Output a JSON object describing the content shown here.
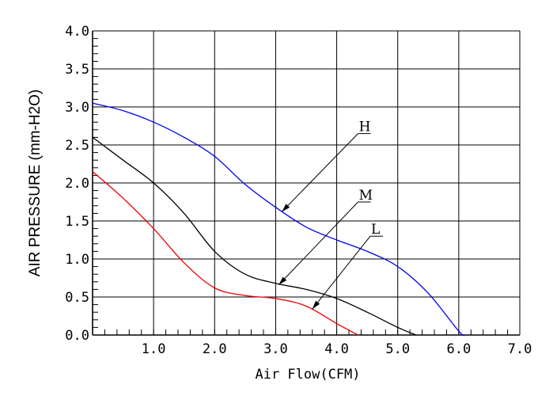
{
  "chart_data": {
    "type": "line",
    "title": "",
    "xlabel": "Air Flow(CFM)",
    "ylabel": "AIR PRESSURE (mm-H2O)",
    "xlim": [
      0,
      7
    ],
    "ylim": [
      0,
      4
    ],
    "grid": true,
    "x_ticks": [
      "1.0",
      "2.0",
      "3.0",
      "4.0",
      "5.0",
      "6.0",
      "7.0"
    ],
    "y_ticks": [
      "0.0",
      "0.5",
      "1.0",
      "1.5",
      "2.0",
      "2.5",
      "3.0",
      "3.5",
      "4.0"
    ],
    "series": [
      {
        "name": "H",
        "color": "#0000ee",
        "points": [
          [
            0,
            3.05
          ],
          [
            0.5,
            2.95
          ],
          [
            1.0,
            2.8
          ],
          [
            1.5,
            2.6
          ],
          [
            2.0,
            2.35
          ],
          [
            2.5,
            1.98
          ],
          [
            3.0,
            1.68
          ],
          [
            3.5,
            1.42
          ],
          [
            4.0,
            1.25
          ],
          [
            4.5,
            1.1
          ],
          [
            5.0,
            0.9
          ],
          [
            5.5,
            0.55
          ],
          [
            6.0,
            0.05
          ],
          [
            6.1,
            0.0
          ]
        ]
      },
      {
        "name": "M",
        "color": "#000000",
        "points": [
          [
            0,
            2.6
          ],
          [
            0.5,
            2.3
          ],
          [
            1.0,
            2.0
          ],
          [
            1.5,
            1.6
          ],
          [
            2.0,
            1.1
          ],
          [
            2.5,
            0.8
          ],
          [
            3.0,
            0.68
          ],
          [
            3.5,
            0.6
          ],
          [
            4.0,
            0.48
          ],
          [
            4.5,
            0.3
          ],
          [
            5.0,
            0.1
          ],
          [
            5.3,
            0.0
          ]
        ]
      },
      {
        "name": "L",
        "color": "#ee0000",
        "points": [
          [
            0,
            2.15
          ],
          [
            0.5,
            1.8
          ],
          [
            1.0,
            1.4
          ],
          [
            1.5,
            0.95
          ],
          [
            2.0,
            0.62
          ],
          [
            2.5,
            0.52
          ],
          [
            3.0,
            0.48
          ],
          [
            3.5,
            0.38
          ],
          [
            4.0,
            0.15
          ],
          [
            4.35,
            0.0
          ]
        ]
      }
    ],
    "annotations": [
      {
        "label": "H",
        "target": [
          3.1,
          1.62
        ],
        "text_at": [
          4.35,
          2.65
        ]
      },
      {
        "label": "M",
        "target": [
          3.05,
          0.66
        ],
        "text_at": [
          4.35,
          1.75
        ]
      },
      {
        "label": "L",
        "target": [
          3.6,
          0.34
        ],
        "text_at": [
          4.55,
          1.3
        ]
      }
    ]
  }
}
